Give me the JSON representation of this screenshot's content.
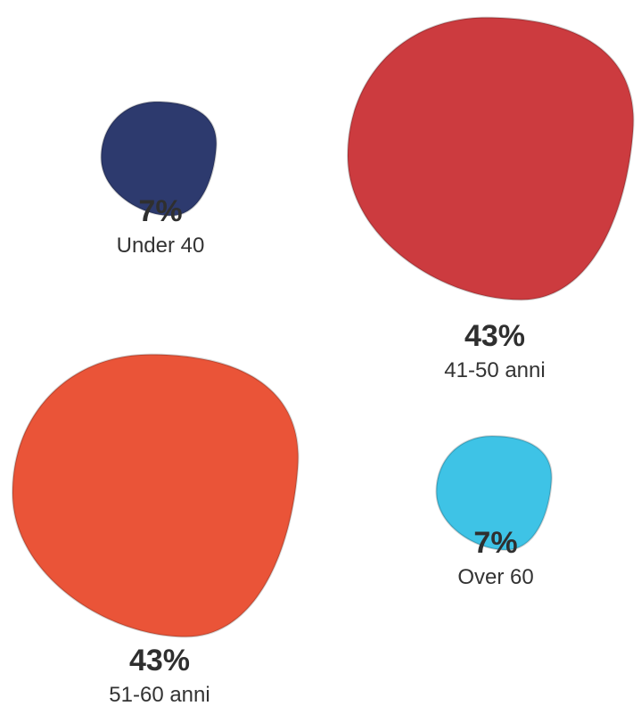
{
  "chart_data": {
    "type": "pie",
    "categories": [
      "Under 40",
      "41-50 anni",
      "51-60 anni",
      "Over 60"
    ],
    "values": [
      7,
      43,
      43,
      7
    ],
    "value_labels": [
      "7%",
      "43%",
      "43%",
      "7%"
    ],
    "colors": [
      "#2d3a6e",
      "#cc3b3f",
      "#ea5438",
      "#3ec3e6"
    ]
  }
}
